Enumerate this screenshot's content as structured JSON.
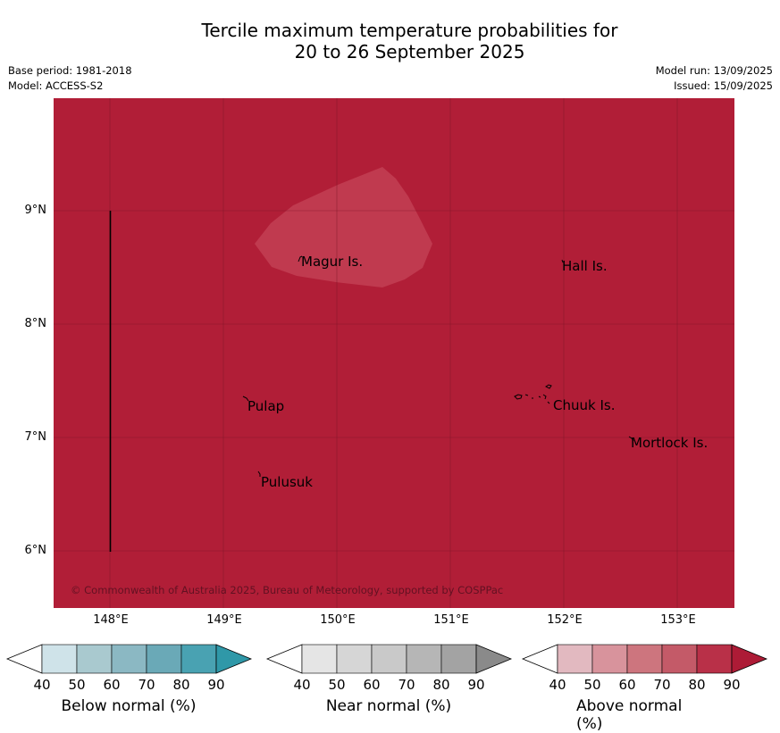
{
  "title_line1": "Tercile maximum temperature probabilities for",
  "title_line2": "20 to 26 September 2025",
  "base_period": "Base period: 1981-2018",
  "model": "Model: ACCESS-S2",
  "model_run": "Model run: 13/09/2025",
  "issued": "Issued: 15/09/2025",
  "copyright": "© Commonwealth of Australia 2025, Bureau of Meteorology, supported by COSPPac",
  "map": {
    "fill_color": "#b11e37",
    "lighter_region_color": "#c03a4f",
    "lat_labels": [
      "9°N",
      "8°N",
      "7°N",
      "6°N"
    ],
    "lon_labels": [
      "148°E",
      "149°E",
      "150°E",
      "151°E",
      "152°E",
      "153°E"
    ],
    "places": [
      "Magur Is.",
      "Hall Is.",
      "Pulap",
      "Chuuk Is.",
      "Mortlock Is.",
      "Pulusuk"
    ]
  },
  "colorbars": [
    {
      "label": "Below normal (%)",
      "ticks": [
        "40",
        "50",
        "60",
        "70",
        "80",
        "90"
      ],
      "colors": [
        "#cfe3e9",
        "#a9c9cf",
        "#8bb8c3",
        "#6aa9b7",
        "#49a2b2",
        "#2f98a8"
      ]
    },
    {
      "label": "Near normal (%)",
      "ticks": [
        "40",
        "50",
        "60",
        "70",
        "80",
        "90"
      ],
      "colors": [
        "#e5e5e5",
        "#d6d6d6",
        "#c9c9c9",
        "#b6b6b6",
        "#a3a3a3",
        "#8a8a8a"
      ]
    },
    {
      "label": "Above normal (%)",
      "ticks": [
        "40",
        "50",
        "60",
        "70",
        "80",
        "90"
      ],
      "colors": [
        "#e2b9c0",
        "#d8939c",
        "#cd757e",
        "#c45a68",
        "#b93048",
        "#ad1b36"
      ]
    }
  ]
}
